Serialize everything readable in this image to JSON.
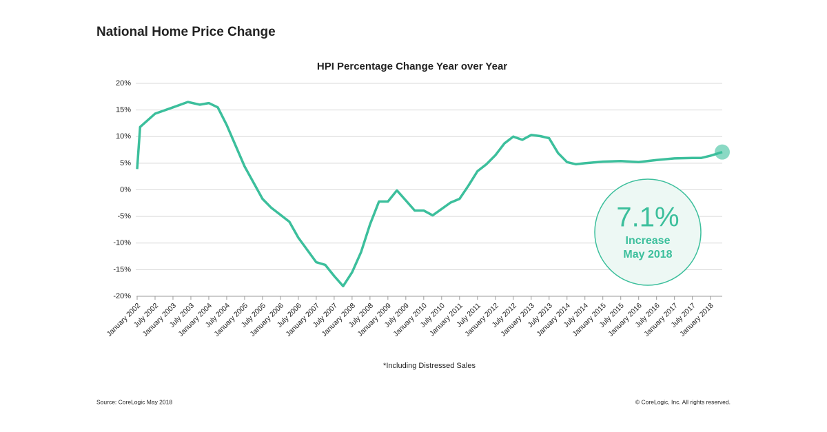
{
  "chart_data": {
    "type": "line",
    "title": "National Home Price Change",
    "subtitle": "HPI Percentage Change Year over Year",
    "note": "*Including Distressed Sales",
    "source": "Source: CoreLogic May 2018",
    "copyright": "© CoreLogic, Inc. All rights reserved.",
    "callout": {
      "text": "7.1%",
      "lines": [
        "Increase",
        "May 2018"
      ]
    },
    "color": "#3cbf9c",
    "grid": true,
    "xlim": [
      "2002-01",
      "2018-05"
    ],
    "ylim": [
      -20,
      20
    ],
    "yticks": [
      {
        "value": 20,
        "label": "20%"
      },
      {
        "value": 15,
        "label": "15%"
      },
      {
        "value": 10,
        "label": "10%"
      },
      {
        "value": 5,
        "label": "5%"
      },
      {
        "value": 0,
        "label": "0%"
      },
      {
        "value": -5,
        "label": "-5%"
      },
      {
        "value": -10,
        "label": "-10%"
      },
      {
        "value": -15,
        "label": "-15%"
      },
      {
        "value": -20,
        "label": "-20%"
      }
    ],
    "xticks": [
      {
        "value": "2002-01",
        "label": "January 2002"
      },
      {
        "value": "2002-07",
        "label": "July 2002"
      },
      {
        "value": "2003-01",
        "label": "January 2003"
      },
      {
        "value": "2003-07",
        "label": "July 2003"
      },
      {
        "value": "2004-01",
        "label": "January 2004"
      },
      {
        "value": "2004-07",
        "label": "July 2004"
      },
      {
        "value": "2005-01",
        "label": "January 2005"
      },
      {
        "value": "2005-07",
        "label": "July 2005"
      },
      {
        "value": "2006-01",
        "label": "January 2006"
      },
      {
        "value": "2006-07",
        "label": "July 2006"
      },
      {
        "value": "2007-01",
        "label": "January 2007"
      },
      {
        "value": "2007-07",
        "label": "July 2007"
      },
      {
        "value": "2008-01",
        "label": "January 2008"
      },
      {
        "value": "2008-07",
        "label": "July 2008"
      },
      {
        "value": "2009-01",
        "label": "January 2009"
      },
      {
        "value": "2009-07",
        "label": "July 2009"
      },
      {
        "value": "2010-01",
        "label": "January 2010"
      },
      {
        "value": "2010-07",
        "label": "July 2010"
      },
      {
        "value": "2011-01",
        "label": "January 2011"
      },
      {
        "value": "2011-07",
        "label": "July 2011"
      },
      {
        "value": "2012-01",
        "label": "January 2012"
      },
      {
        "value": "2012-07",
        "label": "July 2012"
      },
      {
        "value": "2013-01",
        "label": "January 2013"
      },
      {
        "value": "2013-07",
        "label": "July 2013"
      },
      {
        "value": "2014-01",
        "label": "January 2014"
      },
      {
        "value": "2014-07",
        "label": "July 2014"
      },
      {
        "value": "2015-01",
        "label": "January 2015"
      },
      {
        "value": "2015-07",
        "label": "July 2015"
      },
      {
        "value": "2016-01",
        "label": "January 2016"
      },
      {
        "value": "2016-07",
        "label": "July 2016"
      },
      {
        "value": "2017-01",
        "label": "January 2017"
      },
      {
        "value": "2017-07",
        "label": "July 2017"
      },
      {
        "value": "2018-01",
        "label": "January 2018"
      }
    ],
    "x": [
      "2002-01",
      "2002-02",
      "2002-07",
      "2003-01",
      "2003-06",
      "2003-10",
      "2004-01",
      "2004-04",
      "2004-07",
      "2005-01",
      "2005-07",
      "2005-10",
      "2006-01",
      "2006-04",
      "2006-07",
      "2007-01",
      "2007-04",
      "2007-07",
      "2007-10",
      "2008-01",
      "2008-04",
      "2008-07",
      "2008-10",
      "2009-01",
      "2009-04",
      "2009-07",
      "2009-10",
      "2010-01",
      "2010-04",
      "2010-07",
      "2010-10",
      "2011-01",
      "2011-04",
      "2011-07",
      "2011-10",
      "2012-01",
      "2012-04",
      "2012-07",
      "2012-10",
      "2013-01",
      "2013-04",
      "2013-07",
      "2013-10",
      "2014-01",
      "2014-04",
      "2014-07",
      "2015-01",
      "2015-07",
      "2016-01",
      "2016-07",
      "2017-01",
      "2017-07",
      "2017-10",
      "2018-01",
      "2018-05"
    ],
    "values": [
      3.9,
      11.8,
      14.3,
      15.5,
      16.5,
      16,
      16.3,
      15.5,
      12.2,
      4.4,
      -1.7,
      -3.4,
      -4.7,
      -6,
      -9,
      -13.6,
      -14.1,
      -16.2,
      -18.1,
      -15.5,
      -11.7,
      -6.5,
      -2.2,
      -2.2,
      -0.1,
      -2,
      -3.9,
      -3.9,
      -4.8,
      -3.6,
      -2.4,
      -1.7,
      0.8,
      3.5,
      4.8,
      6.5,
      8.7,
      10,
      9.4,
      10.3,
      10.1,
      9.7,
      6.9,
      5.2,
      4.8,
      5,
      5.3,
      5.4,
      5.2,
      5.6,
      5.9,
      6,
      6,
      6.4,
      7.1
    ]
  }
}
